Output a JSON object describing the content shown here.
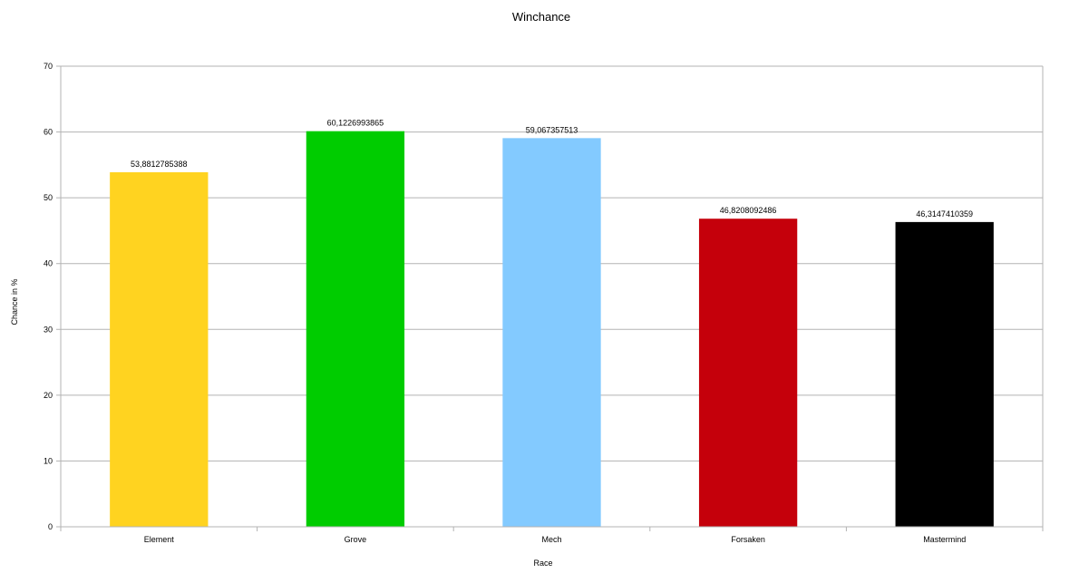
{
  "chart_data": {
    "type": "bar",
    "title": "Winchance",
    "xlabel": "Race",
    "ylabel": "Chance in %",
    "categories": [
      "Element",
      "Grove",
      "Mech",
      "Forsaken",
      "Mastermind"
    ],
    "values": [
      53.8812785388,
      60.1226993865,
      59.067357513,
      46.8208092486,
      46.3147410359
    ],
    "value_labels": [
      "53,8812785388",
      "60,1226993865",
      "59,067357513",
      "46,8208092486",
      "46,3147410359"
    ],
    "colors": [
      "#ffd320",
      "#00cc00",
      "#83caff",
      "#c5000b",
      "#000000"
    ],
    "ylim": [
      0,
      70
    ],
    "yticks": [
      0,
      10,
      20,
      30,
      40,
      50,
      60,
      70
    ],
    "grid": true,
    "legend": "none"
  }
}
